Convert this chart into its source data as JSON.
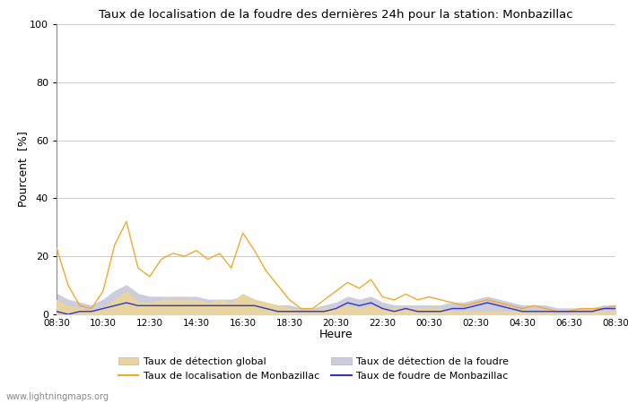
{
  "title": "Taux de localisation de la foudre des dernières 24h pour la station: Monbazillac",
  "xlabel": "Heure",
  "ylabel": "Pourcent  [%]",
  "watermark": "www.lightningmaps.org",
  "ylim": [
    0,
    100
  ],
  "yticks": [
    0,
    20,
    40,
    60,
    80,
    100
  ],
  "x_labels": [
    "08:30",
    "10:30",
    "12:30",
    "14:30",
    "16:30",
    "18:30",
    "20:30",
    "22:30",
    "00:30",
    "02:30",
    "04:30",
    "06:30",
    "08:30"
  ],
  "color_orange": "#f5a82a",
  "color_blue": "#3333bb",
  "color_fill_orange": "#e8d4a0",
  "color_fill_blue": "#ccccdd",
  "bg_color": "#f8f8f8",
  "orange_line": [
    23,
    10,
    3,
    2,
    8,
    24,
    32,
    16,
    13,
    19,
    21,
    20,
    22,
    19,
    21,
    16,
    28,
    22,
    15,
    10,
    5,
    2,
    2,
    5,
    8,
    11,
    9,
    12,
    6,
    5,
    7,
    5,
    6,
    5,
    4,
    3,
    4,
    5,
    4,
    3,
    2,
    3,
    2,
    1,
    1,
    2,
    2,
    2,
    3
  ],
  "orange_fill": [
    5,
    3,
    2,
    1,
    2,
    5,
    8,
    4,
    4,
    5,
    5,
    5,
    5,
    4,
    5,
    4,
    7,
    5,
    4,
    3,
    2,
    1,
    1,
    2,
    2,
    3,
    2,
    3,
    2,
    2,
    2,
    2,
    2,
    2,
    1,
    1,
    1,
    1,
    1,
    1,
    1,
    1,
    1,
    0,
    0,
    1,
    1,
    1,
    1
  ],
  "blue_line": [
    1,
    0,
    1,
    1,
    2,
    3,
    4,
    3,
    3,
    3,
    3,
    3,
    3,
    3,
    3,
    3,
    3,
    3,
    2,
    1,
    1,
    1,
    1,
    1,
    2,
    4,
    3,
    4,
    2,
    1,
    2,
    1,
    1,
    1,
    2,
    2,
    3,
    4,
    3,
    2,
    1,
    1,
    1,
    1,
    1,
    1,
    1,
    2,
    2
  ],
  "blue_fill": [
    7,
    5,
    4,
    3,
    5,
    8,
    10,
    7,
    6,
    6,
    6,
    6,
    6,
    5,
    5,
    5,
    6,
    5,
    4,
    3,
    3,
    2,
    2,
    3,
    4,
    6,
    5,
    6,
    4,
    3,
    3,
    3,
    3,
    3,
    4,
    4,
    5,
    6,
    5,
    4,
    3,
    3,
    3,
    2,
    2,
    2,
    2,
    3,
    3
  ],
  "legend_row1": [
    "Taux de détection global",
    "Taux de localisation de Monbazillac"
  ],
  "legend_row2": [
    "Taux de détection de la foudre",
    "Taux de foudre de Monbazillac"
  ]
}
